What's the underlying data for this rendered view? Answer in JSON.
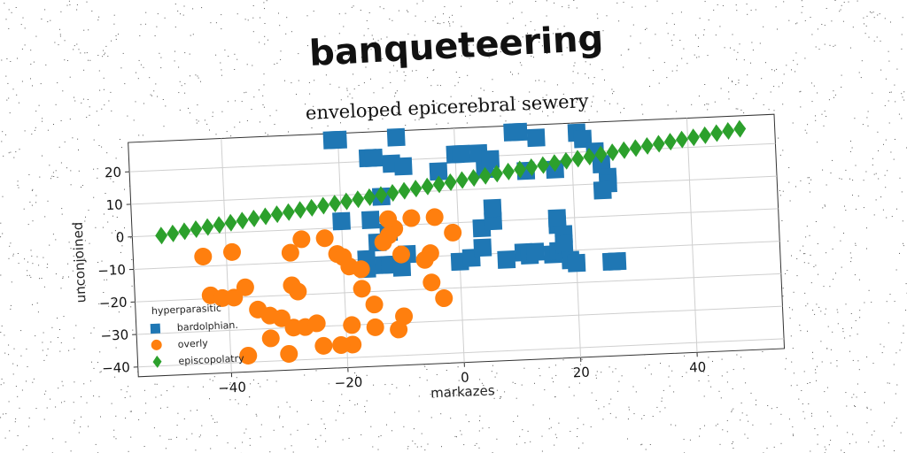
{
  "banner_text": "banqueteering",
  "chart_data": {
    "type": "scatter",
    "title": "enveloped epicerebral sewery",
    "xlabel": "markazes",
    "ylabel": "unconjoined",
    "xlim": [
      -56,
      55
    ],
    "ylim": [
      -43,
      29
    ],
    "xticks": [
      -40,
      -20,
      0,
      20,
      40
    ],
    "yticks": [
      -40,
      -30,
      -20,
      -10,
      0,
      10,
      20
    ],
    "grid": true,
    "legend": {
      "title": "hyperparasitic",
      "placement": "lower-left"
    },
    "series": [
      {
        "name": "bardolphian.",
        "marker": "square",
        "color": "#1f77b4",
        "points": [
          [
            -21,
            27
          ],
          [
            -20,
            27
          ],
          [
            -10,
            27
          ],
          [
            10,
            27
          ],
          [
            11,
            27
          ],
          [
            14,
            25
          ],
          [
            21,
            26
          ],
          [
            22,
            24
          ],
          [
            -15,
            21
          ],
          [
            -14,
            21
          ],
          [
            -11,
            19
          ],
          [
            -9,
            18
          ],
          [
            -3,
            16
          ],
          [
            0,
            21
          ],
          [
            1,
            21
          ],
          [
            4,
            21
          ],
          [
            5,
            16
          ],
          [
            6,
            19
          ],
          [
            12,
            15
          ],
          [
            17,
            15
          ],
          [
            24,
            20
          ],
          [
            25,
            16
          ],
          [
            26,
            12
          ],
          [
            26,
            10
          ],
          [
            25,
            8
          ],
          [
            -13,
            9
          ],
          [
            -15,
            2
          ],
          [
            -20,
            2
          ],
          [
            -12,
            -2
          ],
          [
            -14,
            -5
          ],
          [
            -16,
            -10
          ],
          [
            -16,
            -13
          ],
          [
            -13,
            -12
          ],
          [
            -12,
            -12
          ],
          [
            -10,
            -13
          ],
          [
            -9,
            -9
          ],
          [
            0,
            -12
          ],
          [
            2,
            -11
          ],
          [
            4,
            -8
          ],
          [
            4,
            -2
          ],
          [
            6,
            0
          ],
          [
            6,
            4
          ],
          [
            8,
            -12
          ],
          [
            11,
            -10
          ],
          [
            12,
            -11
          ],
          [
            13,
            -10
          ],
          [
            16,
            -11
          ],
          [
            17,
            -10
          ],
          [
            17,
            -2
          ],
          [
            17,
            0
          ],
          [
            18,
            -5
          ],
          [
            18,
            -8
          ],
          [
            19,
            -13
          ],
          [
            20,
            -14
          ],
          [
            26,
            -14
          ],
          [
            27,
            -14
          ]
        ]
      },
      {
        "name": "overly",
        "marker": "circle",
        "color": "#ff7f0e",
        "points": [
          [
            -44,
            -7
          ],
          [
            -39,
            -6
          ],
          [
            -43,
            -19
          ],
          [
            -41,
            -20
          ],
          [
            -39,
            -20
          ],
          [
            -37,
            -17
          ],
          [
            -35,
            -24
          ],
          [
            -33,
            -26
          ],
          [
            -33,
            -33
          ],
          [
            -31,
            -27
          ],
          [
            -29,
            -7
          ],
          [
            -29,
            -17
          ],
          [
            -28,
            -19
          ],
          [
            -29,
            -30
          ],
          [
            -27,
            -30
          ],
          [
            -25,
            -29
          ],
          [
            -27,
            -3
          ],
          [
            -23,
            -3
          ],
          [
            -21,
            -8
          ],
          [
            -20,
            -9
          ],
          [
            -19,
            -12
          ],
          [
            -17,
            -13
          ],
          [
            -17,
            -19
          ],
          [
            -15,
            -24
          ],
          [
            -15,
            -31
          ],
          [
            -19,
            -36
          ],
          [
            -21,
            -36
          ],
          [
            -19,
            -30
          ],
          [
            -24,
            -36
          ],
          [
            -30,
            -38
          ],
          [
            -37,
            -38
          ],
          [
            -13,
            -5
          ],
          [
            -12,
            -3
          ],
          [
            -11,
            -1
          ],
          [
            -12,
            2
          ],
          [
            -8,
            2
          ],
          [
            -4,
            2
          ],
          [
            -10,
            -9
          ],
          [
            -10,
            -28
          ],
          [
            -11,
            -32
          ],
          [
            -5,
            -9
          ],
          [
            -6,
            -11
          ],
          [
            -5,
            -18
          ],
          [
            -3,
            -23
          ],
          [
            -1,
            -3
          ]
        ]
      },
      {
        "name": "episcopolatry",
        "marker": "diamond",
        "color": "#2ca02c",
        "points": [
          [
            -51,
            0
          ],
          [
            -49,
            0.5
          ],
          [
            -47,
            1
          ],
          [
            -45,
            1.5
          ],
          [
            -43,
            2
          ],
          [
            -41,
            2.5
          ],
          [
            -39,
            3
          ],
          [
            -37,
            3.5
          ],
          [
            -35,
            4
          ],
          [
            -33,
            4.5
          ],
          [
            -31,
            5
          ],
          [
            -29,
            5.5
          ],
          [
            -27,
            6
          ],
          [
            -25,
            6.5
          ],
          [
            -23,
            7
          ],
          [
            -21,
            7.5
          ],
          [
            -19,
            8
          ],
          [
            -17,
            8.5
          ],
          [
            -15,
            9
          ],
          [
            -13,
            9.5
          ],
          [
            -11,
            10
          ],
          [
            -9,
            10.5
          ],
          [
            -7,
            11
          ],
          [
            -5,
            11.5
          ],
          [
            -3,
            12
          ],
          [
            -1,
            12.5
          ],
          [
            1,
            13
          ],
          [
            3,
            13.5
          ],
          [
            5,
            14
          ],
          [
            7,
            14.5
          ],
          [
            9,
            15
          ],
          [
            11,
            15.5
          ],
          [
            13,
            16
          ],
          [
            15,
            16.5
          ],
          [
            17,
            17
          ],
          [
            19,
            17.5
          ],
          [
            21,
            18
          ],
          [
            23,
            18.5
          ],
          [
            25,
            19
          ],
          [
            27,
            19.5
          ],
          [
            29,
            20
          ],
          [
            31,
            20.5
          ],
          [
            33,
            21
          ],
          [
            35,
            21.5
          ],
          [
            37,
            22
          ],
          [
            39,
            22.5
          ],
          [
            41,
            23
          ],
          [
            43,
            23.5
          ],
          [
            45,
            24
          ],
          [
            47,
            24.5
          ],
          [
            49,
            25
          ]
        ]
      }
    ]
  }
}
